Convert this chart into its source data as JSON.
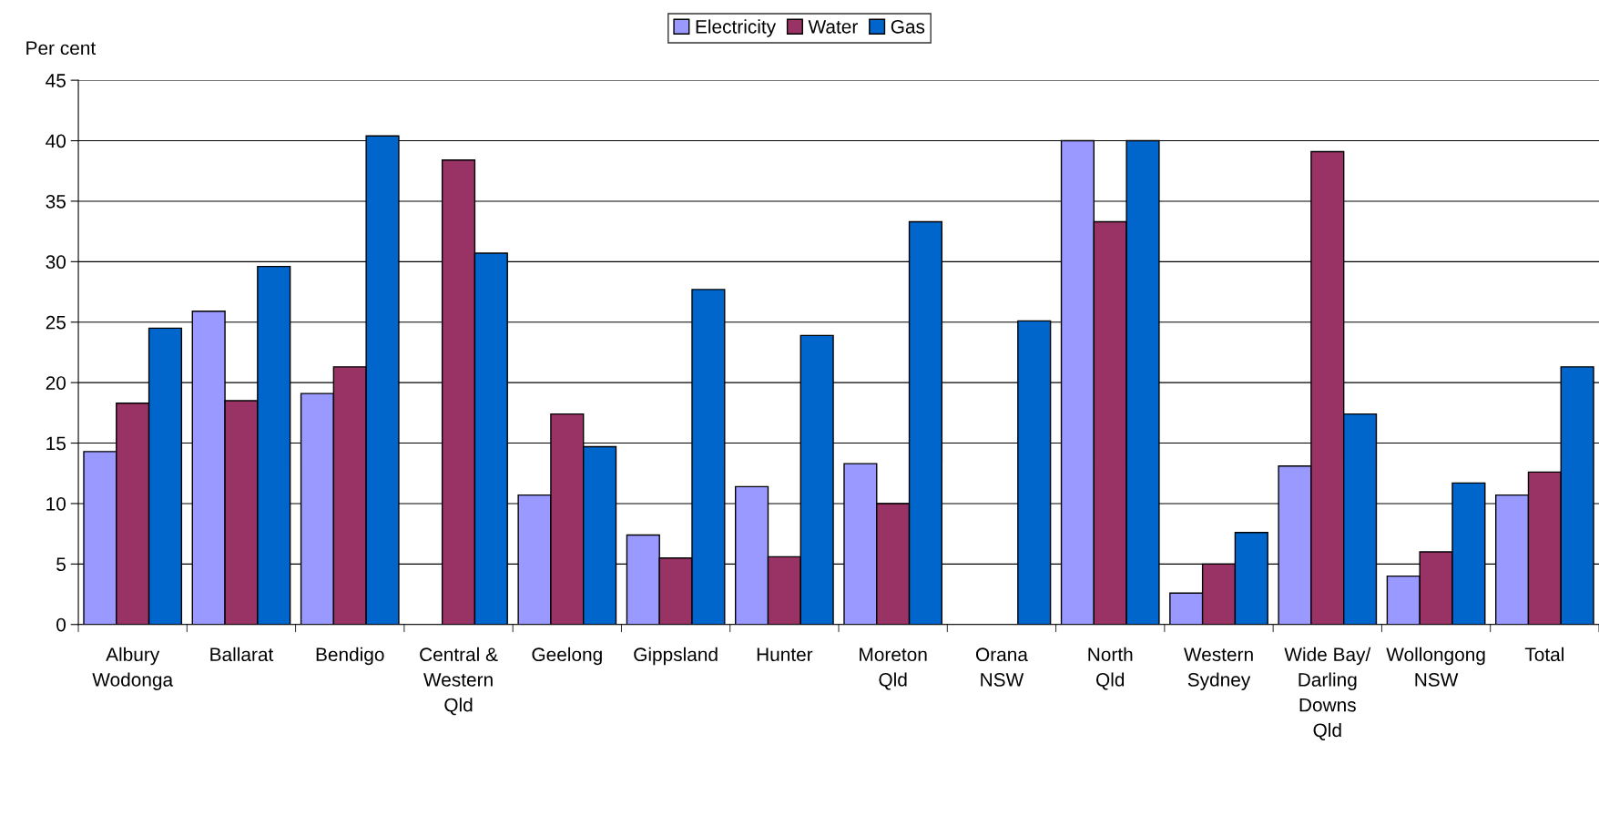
{
  "chart_data": {
    "type": "bar",
    "ylabel": "Per cent",
    "categories": [
      "Albury\nWodonga",
      "Ballarat",
      "Bendigo",
      "Central &\nWestern\nQld",
      "Geelong",
      "Gippsland",
      "Hunter",
      "Moreton\nQld",
      "Orana\nNSW",
      "North\nQld",
      "Western\nSydney",
      "Wide Bay/\nDarling\nDowns\nQld",
      "Wollongong\nNSW",
      "Total"
    ],
    "series": [
      {
        "name": "Electricity",
        "color": "#9999ff",
        "values": [
          14.3,
          25.9,
          19.1,
          null,
          10.7,
          7.4,
          11.4,
          13.3,
          null,
          40,
          2.6,
          13.1,
          4.0,
          10.7
        ]
      },
      {
        "name": "Water",
        "color": "#993366",
        "values": [
          18.3,
          18.5,
          21.3,
          38.4,
          17.4,
          5.5,
          5.6,
          10.0,
          null,
          33.3,
          5.0,
          39.1,
          6.0,
          12.6
        ]
      },
      {
        "name": "Gas",
        "color": "#0066cc",
        "values": [
          24.5,
          29.6,
          40.4,
          30.7,
          14.7,
          27.7,
          23.9,
          33.3,
          25.1,
          40,
          7.6,
          17.4,
          11.7,
          21.3
        ]
      }
    ],
    "ylim": [
      0,
      45
    ],
    "yticks": [
      0,
      5,
      10,
      15,
      20,
      25,
      30,
      35,
      40,
      45
    ],
    "grid": "y",
    "legend": "top"
  }
}
